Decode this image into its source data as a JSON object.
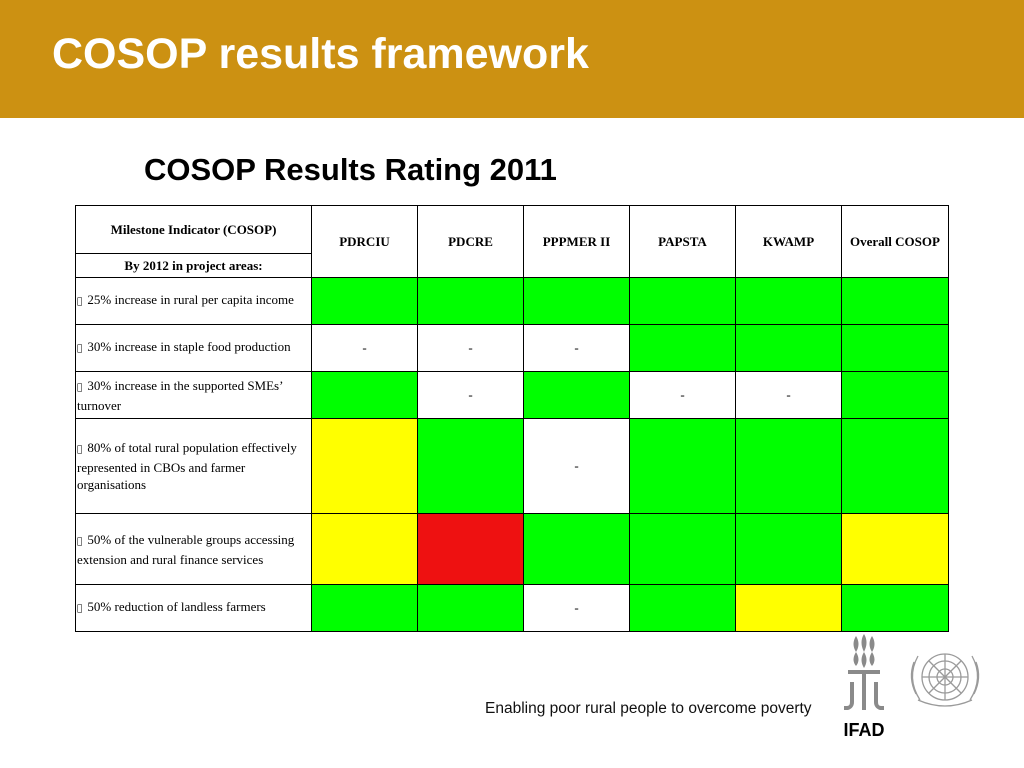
{
  "slide": {
    "title": "COSOP results framework",
    "subtitle": "COSOP Results Rating 2011"
  },
  "table": {
    "header_indicator": "Milestone Indicator (COSOP)",
    "header_subline": "By 2012 in project areas:",
    "columns": [
      "PDRCIU",
      "PDCRE",
      "PPPMER II",
      "PAPSTA",
      "KWAMP",
      "Overall COSOP"
    ],
    "bullet_glyph": "",
    "rows": [
      {
        "indicator": "25% increase in rural per capita income",
        "ratings": [
          "green",
          "green",
          "green",
          "green",
          "green",
          "green"
        ],
        "texts": [
          "",
          "",
          "",
          "",
          "",
          ""
        ]
      },
      {
        "indicator": "30% increase in staple food production",
        "ratings": [
          "white",
          "white",
          "white",
          "green",
          "green",
          "green"
        ],
        "texts": [
          "-",
          "-",
          "-",
          "",
          "",
          ""
        ]
      },
      {
        "indicator": "30% increase in the supported SMEs’ turnover",
        "ratings": [
          "green",
          "white",
          "green",
          "white",
          "white",
          "green"
        ],
        "texts": [
          "",
          "-",
          "",
          "-",
          "-",
          ""
        ]
      },
      {
        "indicator": "80% of total rural population effectively represented in CBOs and farmer organisations",
        "ratings": [
          "yellow",
          "green",
          "white",
          "green",
          "green",
          "green"
        ],
        "texts": [
          "",
          "",
          "-",
          "",
          "",
          ""
        ]
      },
      {
        "indicator": "50% of the vulnerable groups accessing extension and rural finance services",
        "ratings": [
          "yellow",
          "red",
          "green",
          "green",
          "green",
          "yellow"
        ],
        "texts": [
          "",
          "",
          "",
          "",
          "",
          ""
        ]
      },
      {
        "indicator": "50% reduction of landless farmers",
        "ratings": [
          "green",
          "green",
          "white",
          "green",
          "yellow",
          "green"
        ],
        "texts": [
          "",
          "",
          "-",
          "",
          "",
          ""
        ]
      }
    ]
  },
  "colors": {
    "header_band": "#cc9112",
    "green": "#00ff00",
    "yellow": "#ffff00",
    "red": "#ee1111"
  },
  "footer": {
    "tagline": "Enabling poor rural people to overcome poverty",
    "logo_text": "IFAD"
  },
  "icons": {
    "ifad_logo": "ifad-logo-icon",
    "un_emblem": "un-emblem-icon"
  }
}
